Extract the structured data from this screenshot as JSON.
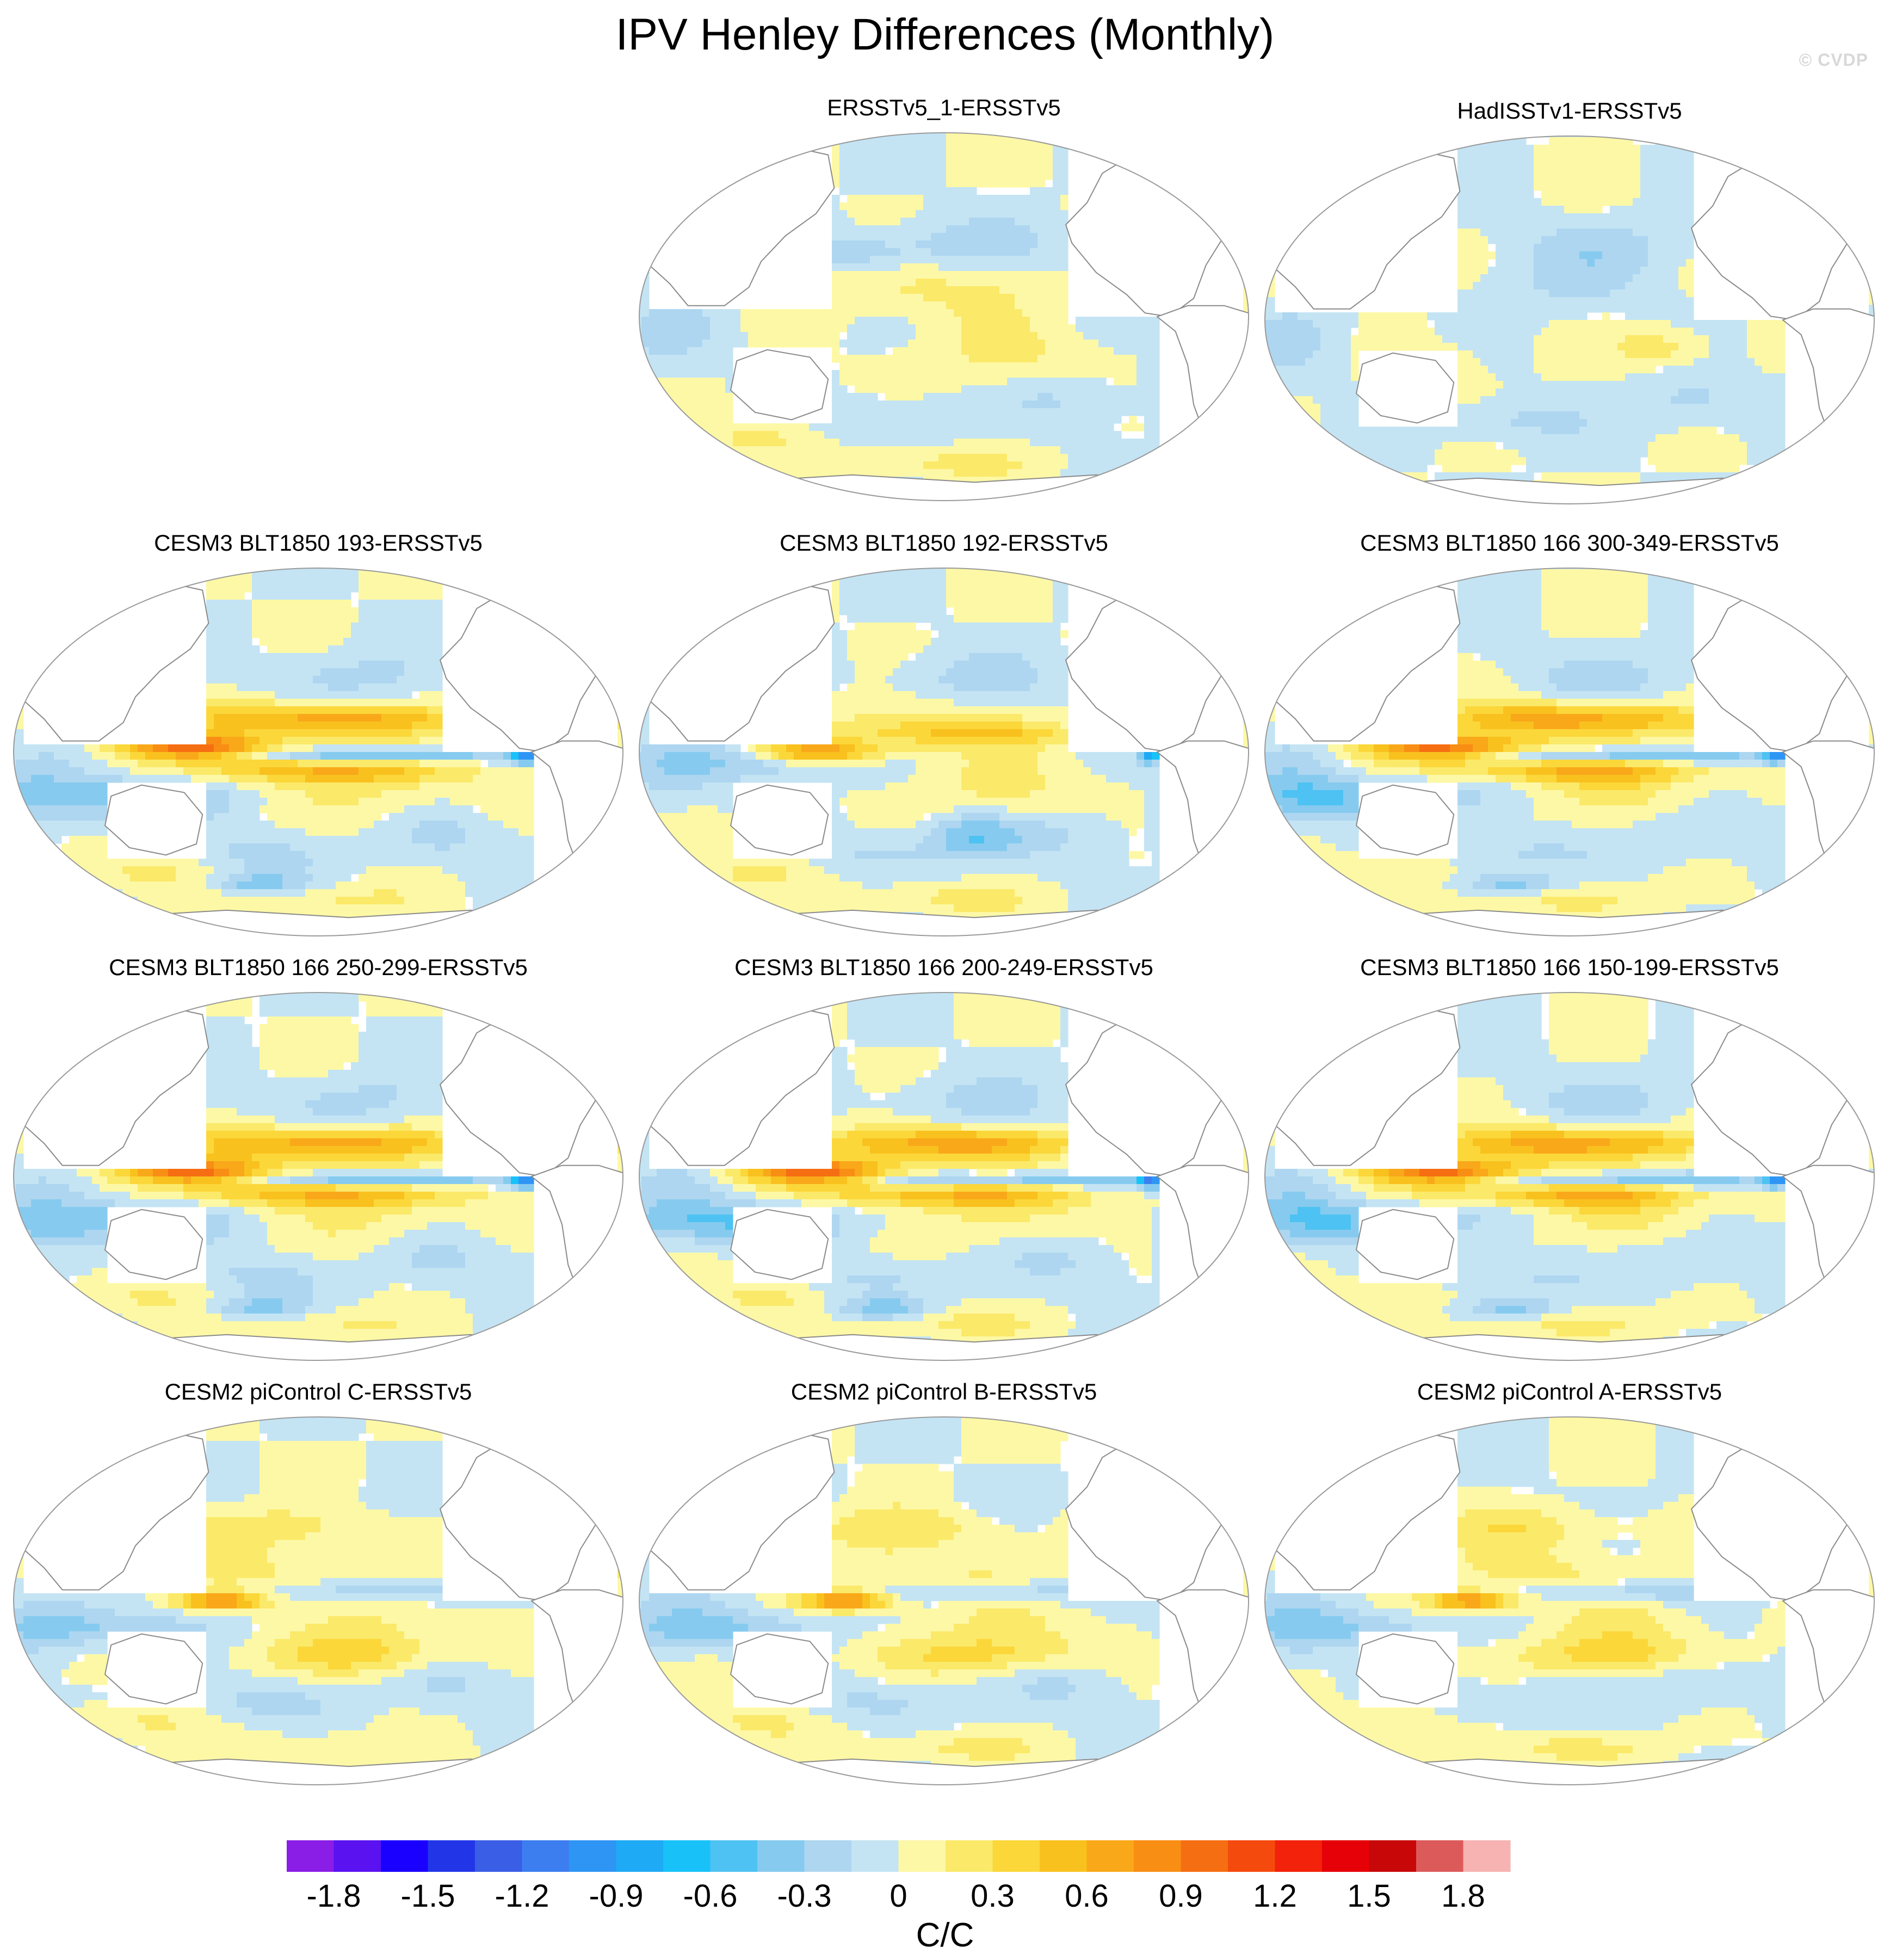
{
  "title": "IPV Henley Differences (Monthly)",
  "watermark": "© CVDP",
  "panels": [
    {
      "title": "ERSSTv5_1-ERSSTv5",
      "pattern": "obs1"
    },
    {
      "title": "HadISSTv1-ERSSTv5",
      "pattern": "obs2"
    },
    {
      "title": "CESM3 BLT1850 193-ERSSTv5",
      "pattern": "model-strong"
    },
    {
      "title": "CESM3 BLT1850 192-ERSSTv5",
      "pattern": "model-medium"
    },
    {
      "title": "CESM3 BLT1850 166 300-349-ERSSTv5",
      "pattern": "model-strong"
    },
    {
      "title": "CESM3 BLT1850 166 250-299-ERSSTv5",
      "pattern": "model-strong"
    },
    {
      "title": "CESM3 BLT1850 166 200-249-ERSSTv5",
      "pattern": "model-strong"
    },
    {
      "title": "CESM3 BLT1850 166 150-199-ERSSTv5",
      "pattern": "model-strong"
    },
    {
      "title": "CESM2 piControl C-ERSSTv5",
      "pattern": "cesm2"
    },
    {
      "title": "CESM2 piControl B-ERSSTv5",
      "pattern": "cesm2"
    },
    {
      "title": "CESM2 piControl A-ERSSTv5",
      "pattern": "cesm2"
    }
  ],
  "colorbar": {
    "unit": "C/C",
    "tick_labels": [
      "-1.8",
      "-1.5",
      "-1.2",
      "-0.9",
      "-0.6",
      "-0.3",
      "0",
      "0.3",
      "0.6",
      "0.9",
      "1.2",
      "1.5",
      "1.8"
    ],
    "colors": [
      "#8a1ee6",
      "#5a12f0",
      "#1a00ff",
      "#2236e8",
      "#3a5ee6",
      "#3c7ef0",
      "#2f95f5",
      "#1eaaf5",
      "#18c2f8",
      "#4ec2f2",
      "#86cbef",
      "#aed6f0",
      "#c4e4f4",
      "#fdf8a6",
      "#fbe96a",
      "#fbd73a",
      "#f9c11e",
      "#f9a81a",
      "#f98e14",
      "#f66e12",
      "#f54a0e",
      "#f3220a",
      "#e60008",
      "#c80808",
      "#dd5a5a",
      "#f7b2b2"
    ]
  }
}
